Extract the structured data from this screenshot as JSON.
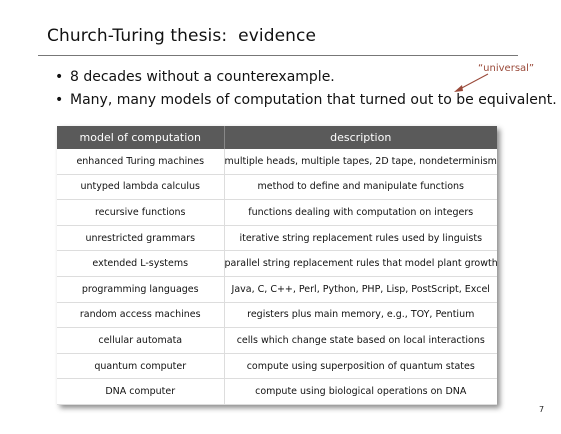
{
  "slide": {
    "title": "Church-Turing thesis:  evidence",
    "bullets": [
      "8 decades without a counterexample.",
      "Many, many models of computation that turned out to be equivalent."
    ],
    "bullet_symbol": "•",
    "annotation": "“universal”",
    "page_number": "7"
  },
  "table": {
    "headers": [
      "model of computation",
      "description"
    ],
    "rows": [
      [
        "enhanced Turing machines",
        "multiple heads, multiple tapes, 2D tape, nondeterminism"
      ],
      [
        "untyped lambda calculus",
        "method to define and manipulate functions"
      ],
      [
        "recursive functions",
        "functions dealing with computation on integers"
      ],
      [
        "unrestricted grammars",
        "iterative string replacement rules used by linguists"
      ],
      [
        "extended L-systems",
        "parallel string replacement rules that model plant growth"
      ],
      [
        "programming languages",
        "Java, C, C++, Perl, Python, PHP, Lisp, PostScript, Excel"
      ],
      [
        "random access machines",
        "registers plus main memory, e.g., TOY, Pentium"
      ],
      [
        "cellular automata",
        "cells which change state based on local interactions"
      ],
      [
        "quantum computer",
        "compute using superposition of quantum states"
      ],
      [
        "DNA computer",
        "compute using biological operations on DNA"
      ]
    ]
  },
  "colors": {
    "header_bg": "#5a5a5a",
    "annotation": "#9a4a3a"
  }
}
